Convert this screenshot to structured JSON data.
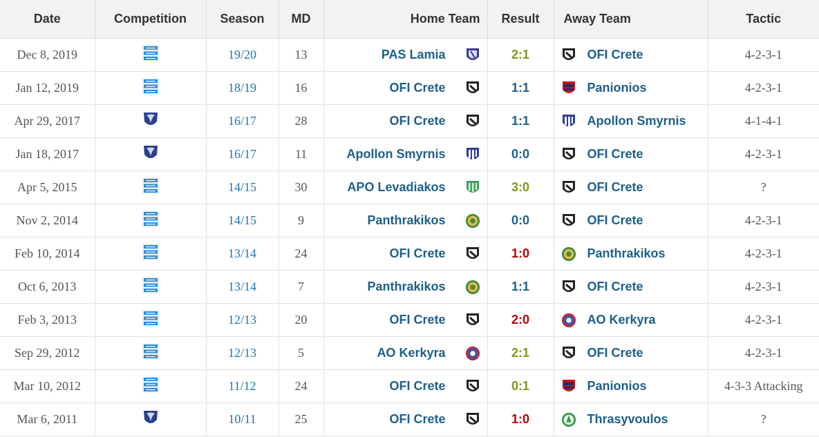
{
  "headers": {
    "date": "Date",
    "competition": "Competition",
    "season": "Season",
    "md": "MD",
    "home": "Home Team",
    "result": "Result",
    "away": "Away Team",
    "tactic": "Tactic"
  },
  "rows": [
    {
      "date": "Dec 8, 2019",
      "comp": "superleague-icon",
      "season": "19/20",
      "md": "13",
      "home": "PAS Lamia",
      "home_logo": "pas-lamia-logo-icon",
      "result": "2:1",
      "result_type": "win",
      "away": "OFI Crete",
      "away_logo": "ofi-crete-logo-icon",
      "tactic": "4-2-3-1"
    },
    {
      "date": "Jan 12, 2019",
      "comp": "superleague-icon",
      "season": "18/19",
      "md": "16",
      "home": "OFI Crete",
      "home_logo": "ofi-crete-logo-icon",
      "result": "1:1",
      "result_type": "draw",
      "away": "Panionios",
      "away_logo": "panionios-logo-icon",
      "tactic": "4-2-3-1"
    },
    {
      "date": "Apr 29, 2017",
      "comp": "football-league-icon",
      "season": "16/17",
      "md": "28",
      "home": "OFI Crete",
      "home_logo": "ofi-crete-logo-icon",
      "result": "1:1",
      "result_type": "draw",
      "away": "Apollon Smyrnis",
      "away_logo": "apollon-smyrnis-logo-icon",
      "tactic": "4-1-4-1"
    },
    {
      "date": "Jan 18, 2017",
      "comp": "football-league-icon",
      "season": "16/17",
      "md": "11",
      "home": "Apollon Smyrnis",
      "home_logo": "apollon-smyrnis-logo-icon",
      "result": "0:0",
      "result_type": "draw",
      "away": "OFI Crete",
      "away_logo": "ofi-crete-logo-icon",
      "tactic": "4-2-3-1"
    },
    {
      "date": "Apr 5, 2015",
      "comp": "superleague-icon",
      "season": "14/15",
      "md": "30",
      "home": "APO Levadiakos",
      "home_logo": "levadiakos-logo-icon",
      "result": "3:0",
      "result_type": "win",
      "away": "OFI Crete",
      "away_logo": "ofi-crete-logo-icon",
      "tactic": "?"
    },
    {
      "date": "Nov 2, 2014",
      "comp": "superleague-icon",
      "season": "14/15",
      "md": "9",
      "home": "Panthrakikos",
      "home_logo": "panthrakikos-logo-icon",
      "result": "0:0",
      "result_type": "draw",
      "away": "OFI Crete",
      "away_logo": "ofi-crete-logo-icon",
      "tactic": "4-2-3-1"
    },
    {
      "date": "Feb 10, 2014",
      "comp": "superleague-icon",
      "season": "13/14",
      "md": "24",
      "home": "OFI Crete",
      "home_logo": "ofi-crete-logo-icon",
      "result": "1:0",
      "result_type": "loss",
      "away": "Panthrakikos",
      "away_logo": "panthrakikos-logo-icon",
      "tactic": "4-2-3-1"
    },
    {
      "date": "Oct 6, 2013",
      "comp": "superleague-icon",
      "season": "13/14",
      "md": "7",
      "home": "Panthrakikos",
      "home_logo": "panthrakikos-logo-icon",
      "result": "1:1",
      "result_type": "draw",
      "away": "OFI Crete",
      "away_logo": "ofi-crete-logo-icon",
      "tactic": "4-2-3-1"
    },
    {
      "date": "Feb 3, 2013",
      "comp": "superleague-icon",
      "season": "12/13",
      "md": "20",
      "home": "OFI Crete",
      "home_logo": "ofi-crete-logo-icon",
      "result": "2:0",
      "result_type": "loss",
      "away": "AO Kerkyra",
      "away_logo": "kerkyra-logo-icon",
      "tactic": "4-2-3-1"
    },
    {
      "date": "Sep 29, 2012",
      "comp": "superleague-icon",
      "season": "12/13",
      "md": "5",
      "home": "AO Kerkyra",
      "home_logo": "kerkyra-logo-icon",
      "result": "2:1",
      "result_type": "win",
      "away": "OFI Crete",
      "away_logo": "ofi-crete-logo-icon",
      "tactic": "4-2-3-1"
    },
    {
      "date": "Mar 10, 2012",
      "comp": "superleague-icon",
      "season": "11/12",
      "md": "24",
      "home": "OFI Crete",
      "home_logo": "ofi-crete-logo-icon",
      "result": "0:1",
      "result_type": "win",
      "away": "Panionios",
      "away_logo": "panionios-logo-icon",
      "tactic": "4-3-3 Attacking"
    },
    {
      "date": "Mar 6, 2011",
      "comp": "football-league-icon",
      "season": "10/11",
      "md": "25",
      "home": "OFI Crete",
      "home_logo": "ofi-crete-logo-icon",
      "result": "1:0",
      "result_type": "loss",
      "away": "Thrasyvoulos",
      "away_logo": "thrasyvoulos-logo-icon",
      "tactic": "?"
    }
  ]
}
